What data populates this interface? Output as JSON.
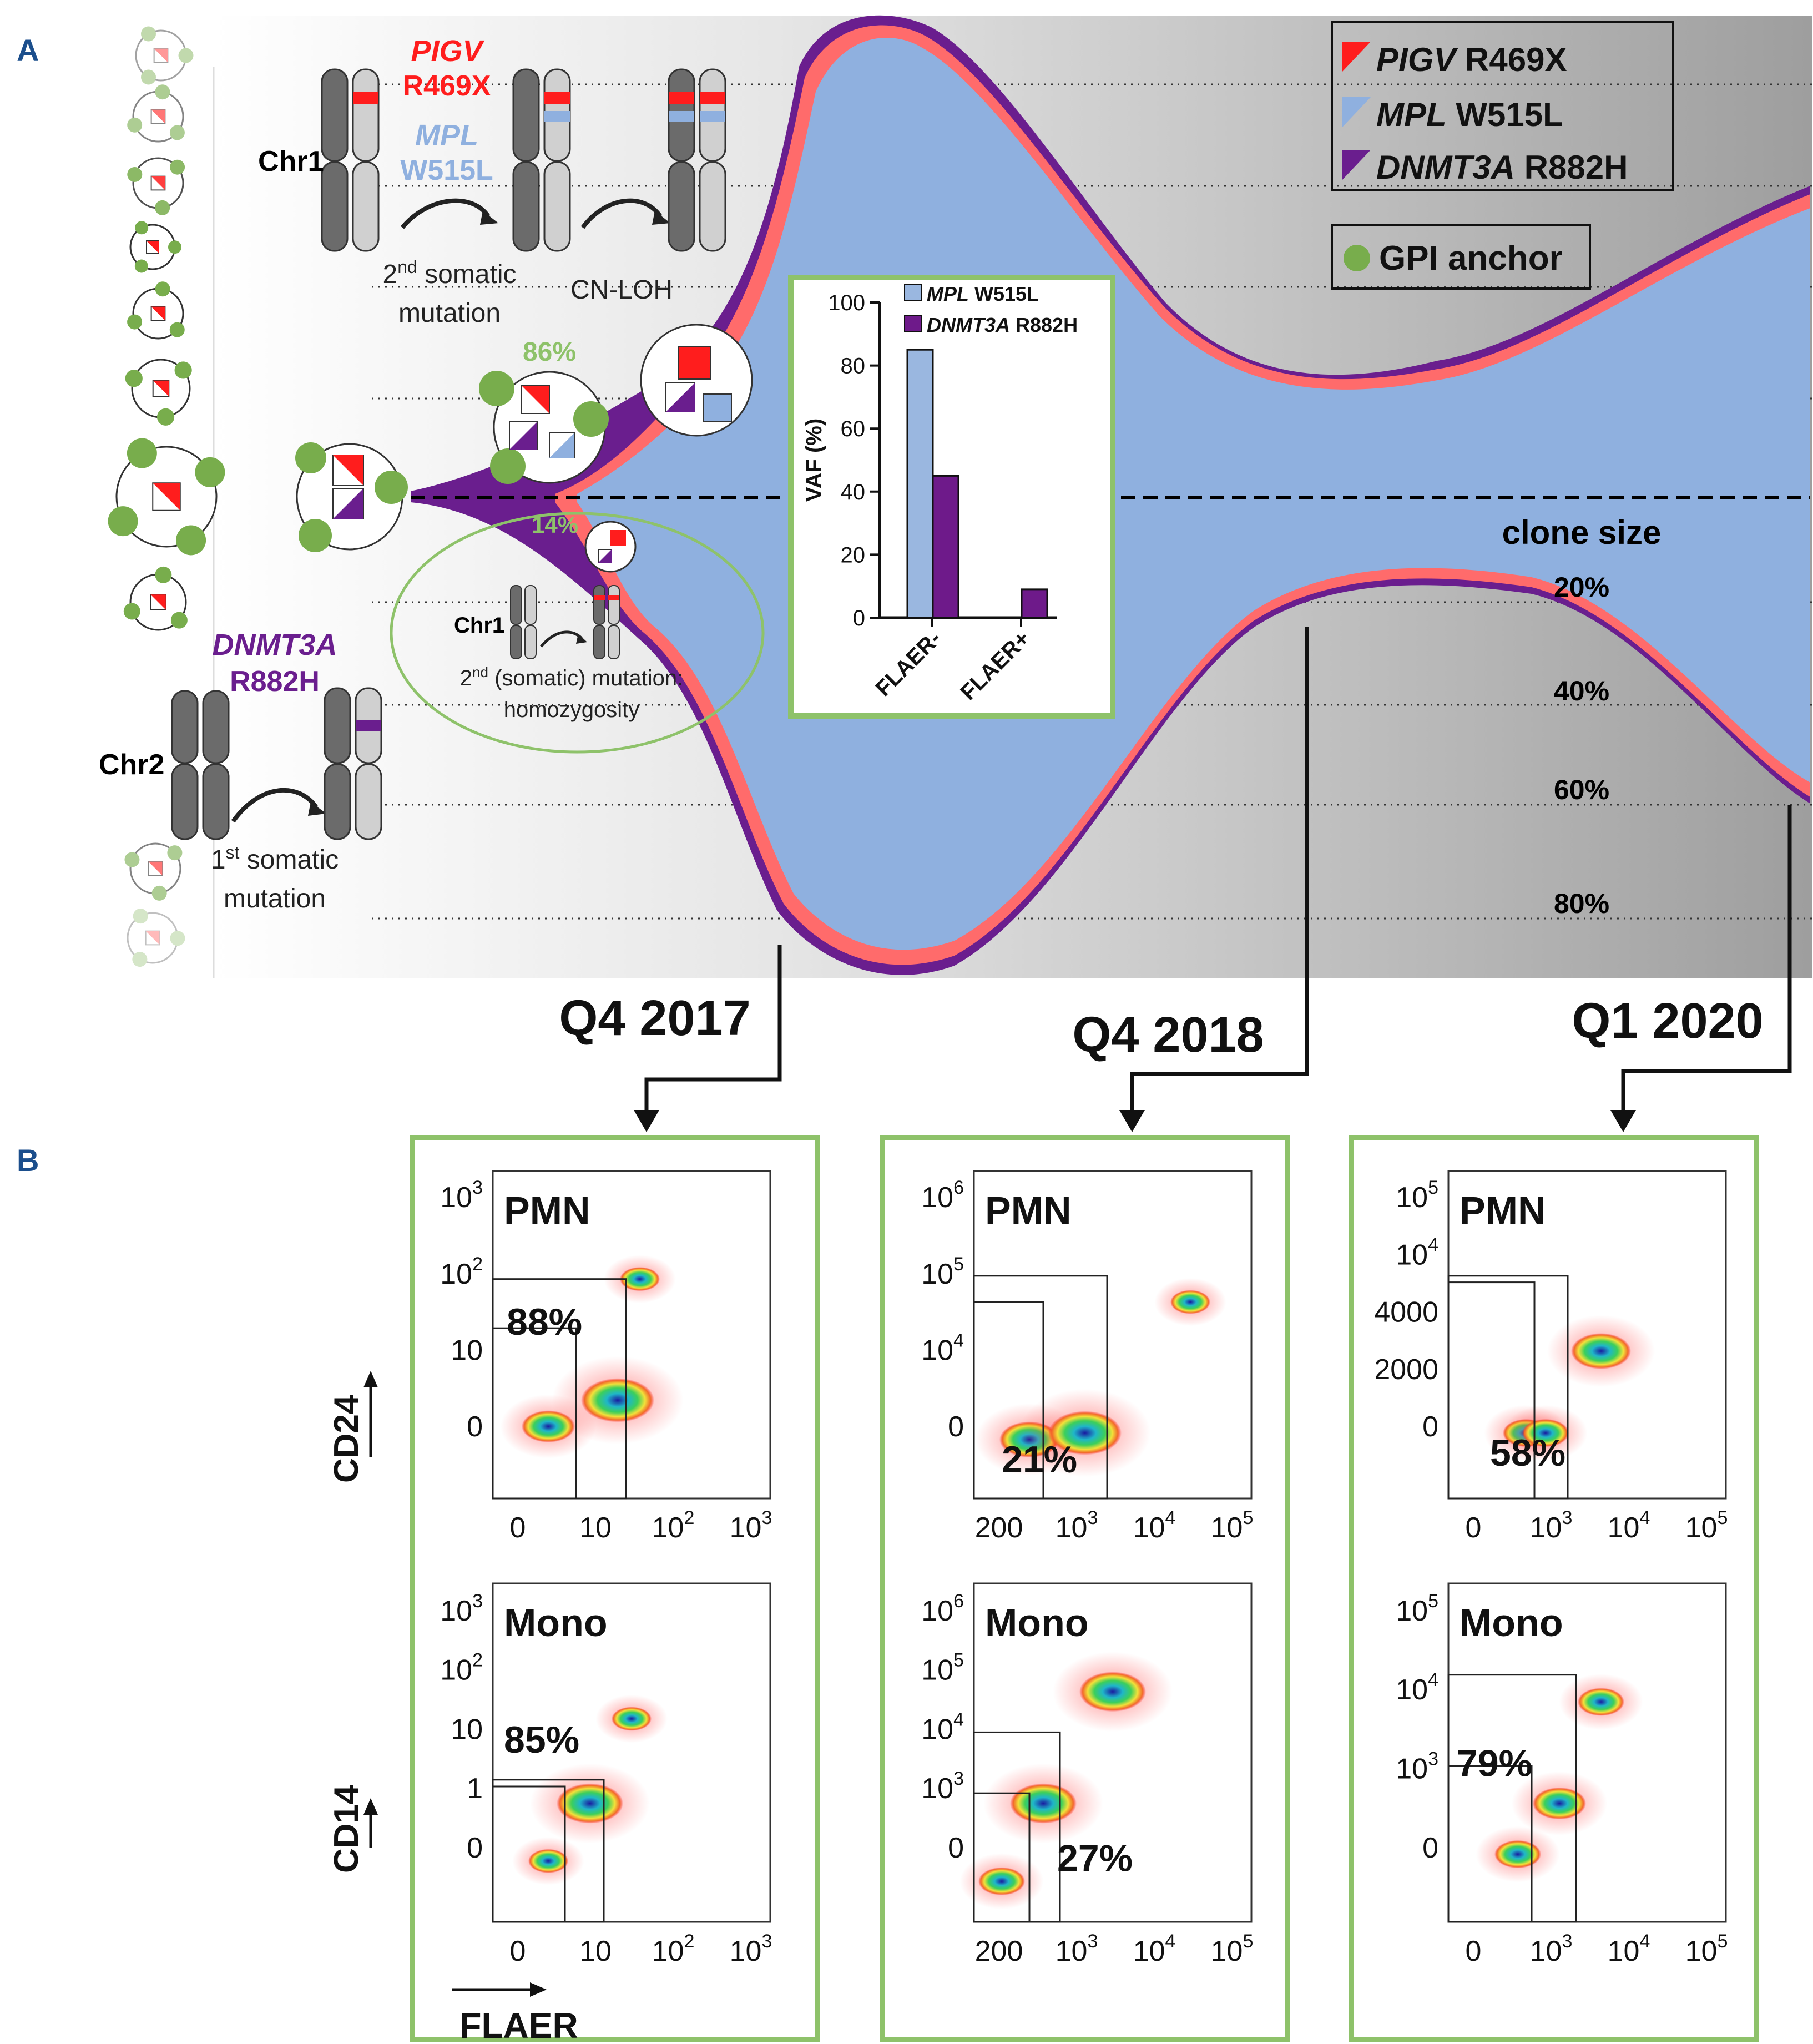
{
  "panel_labels": {
    "a": "A",
    "b": "B"
  },
  "colors": {
    "pigv": "#ff1d1d",
    "mpl": "#8fb0df",
    "dnmt3a": "#6a1e8e",
    "gpi": "#78ad4c",
    "coral": "#ff6b6b",
    "frame_green": "#8ec26a",
    "flaer_neg_bar": "#9ab7e0",
    "flaer_pos_bar": "#6e1a8a"
  },
  "legend": {
    "pigv_gene": "PIGV",
    "pigv_var": " R469X",
    "mpl_gene": "MPL",
    "mpl_var": " W515L",
    "dnmt3a_gene": "DNMT3A",
    "dnmt3a_var": " R882H",
    "gpi_label": "GPI anchor"
  },
  "panel_a": {
    "chr1_label": "Chr1",
    "chr2_label": "Chr2",
    "pigv_gene": "PIGV",
    "pigv_var": "R469X",
    "mpl_gene": "MPL",
    "mpl_var": "W515L",
    "dnmt3a_gene": "DNMT3A",
    "dnmt3a_var": "R882H",
    "second_mutation_line1_pre": "2",
    "second_mutation_line1_sup": "nd",
    "second_mutation_line1_post": " somatic",
    "second_mutation_line2": "mutation",
    "cnloh": "CN-LOH",
    "first_mutation_line1_pre": "1",
    "first_mutation_line1_sup": "st",
    "first_mutation_line1_post": " somatic",
    "first_mutation_line2": "mutation",
    "pct_86": "86%",
    "pct_14": "14%",
    "inner_chr1": "Chr1",
    "homozyg_line1_pre": "2",
    "homozyg_line1_sup": "nd",
    "homozyg_line1_post": " (somatic) mutation:",
    "homozyg_line2": "homozygosity",
    "clone_size": "clone size",
    "clone_levels": [
      "20%",
      "40%",
      "60%",
      "80%"
    ]
  },
  "chart_data": {
    "type": "bar",
    "ylabel": "VAF (%)",
    "categories": [
      "FLAER-",
      "FLAER+"
    ],
    "ylim": [
      0,
      100
    ],
    "yticks": [
      "0",
      "20",
      "40",
      "60",
      "80",
      "100"
    ],
    "series": [
      {
        "name_gene": "MPL",
        "name_var": " W515L",
        "values": [
          85,
          0
        ]
      },
      {
        "name_gene": "DNMT3A",
        "name_var": " R882H",
        "values": [
          45,
          9
        ]
      }
    ]
  },
  "timepoints": [
    "Q4 2017",
    "Q4 2018",
    "Q1 2020"
  ],
  "panel_b": {
    "y_label_top": "CD24",
    "y_label_bottom": "CD14",
    "x_label": "FLAER",
    "plots": [
      {
        "title": "PMN",
        "pct": "88%",
        "y_ticks": [
          {
            "b": "0",
            "e": ""
          },
          {
            "b": "10",
            "e": ""
          },
          {
            "b": "10",
            "e": "2"
          },
          {
            "b": "10",
            "e": "3"
          }
        ],
        "x_ticks": [
          {
            "b": "0",
            "e": ""
          },
          {
            "b": "10",
            "e": ""
          },
          {
            "b": "10",
            "e": "2"
          },
          {
            "b": "10",
            "e": "3"
          }
        ]
      },
      {
        "title": "PMN",
        "pct": "21%",
        "y_ticks": [
          {
            "b": "0",
            "e": ""
          },
          {
            "b": "10",
            "e": "4"
          },
          {
            "b": "10",
            "e": "5"
          },
          {
            "b": "10",
            "e": "6"
          }
        ],
        "x_ticks": [
          {
            "b": "200",
            "e": ""
          },
          {
            "b": "10",
            "e": "3"
          },
          {
            "b": "10",
            "e": "4"
          },
          {
            "b": "10",
            "e": "5"
          }
        ]
      },
      {
        "title": "PMN",
        "pct": "58%",
        "y_ticks": [
          {
            "b": "0",
            "e": ""
          },
          {
            "b": "2000",
            "e": ""
          },
          {
            "b": "4000",
            "e": ""
          },
          {
            "b": "10",
            "e": "4"
          },
          {
            "b": "10",
            "e": "5"
          }
        ],
        "x_ticks": [
          {
            "b": "0",
            "e": ""
          },
          {
            "b": "10",
            "e": "3"
          },
          {
            "b": "10",
            "e": "4"
          },
          {
            "b": "10",
            "e": "5"
          }
        ]
      },
      {
        "title": "Mono",
        "pct": "85%",
        "y_ticks": [
          {
            "b": "0",
            "e": ""
          },
          {
            "b": "1",
            "e": ""
          },
          {
            "b": "10",
            "e": ""
          },
          {
            "b": "10",
            "e": "2"
          },
          {
            "b": "10",
            "e": "3"
          }
        ],
        "x_ticks": [
          {
            "b": "0",
            "e": ""
          },
          {
            "b": "10",
            "e": ""
          },
          {
            "b": "10",
            "e": "2"
          },
          {
            "b": "10",
            "e": "3"
          }
        ]
      },
      {
        "title": "Mono",
        "pct": "27%",
        "y_ticks": [
          {
            "b": "0",
            "e": ""
          },
          {
            "b": "10",
            "e": "3"
          },
          {
            "b": "10",
            "e": "4"
          },
          {
            "b": "10",
            "e": "5"
          },
          {
            "b": "10",
            "e": "6"
          }
        ],
        "x_ticks": [
          {
            "b": "200",
            "e": ""
          },
          {
            "b": "10",
            "e": "3"
          },
          {
            "b": "10",
            "e": "4"
          },
          {
            "b": "10",
            "e": "5"
          }
        ]
      },
      {
        "title": "Mono",
        "pct": "79%",
        "y_ticks": [
          {
            "b": "0",
            "e": ""
          },
          {
            "b": "10",
            "e": "3"
          },
          {
            "b": "10",
            "e": "4"
          },
          {
            "b": "10",
            "e": "5"
          }
        ],
        "x_ticks": [
          {
            "b": "0",
            "e": ""
          },
          {
            "b": "10",
            "e": "3"
          },
          {
            "b": "10",
            "e": "4"
          },
          {
            "b": "10",
            "e": "5"
          }
        ]
      }
    ]
  }
}
